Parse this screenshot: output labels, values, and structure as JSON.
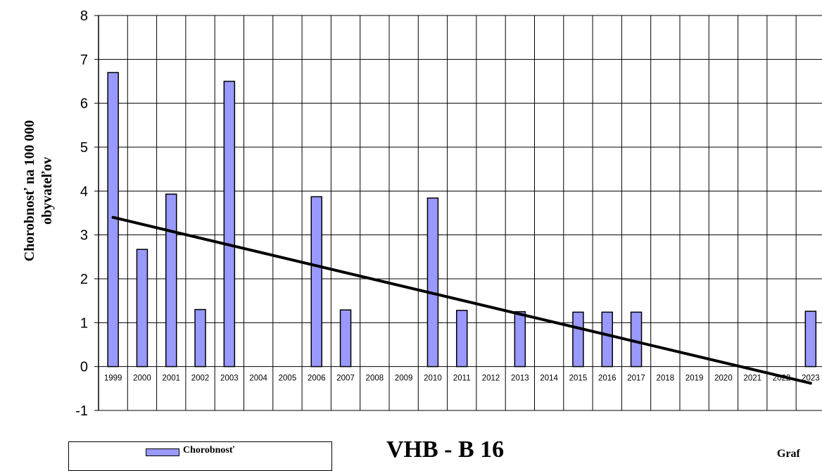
{
  "chart_data": {
    "type": "bar",
    "ylabel_line1": "Chorobnosť na 100 000",
    "ylabel_line2": "obyvateľov",
    "categories": [
      "1999",
      "2000",
      "2001",
      "2002",
      "2003",
      "2004",
      "2005",
      "2006",
      "2007",
      "2008",
      "2009",
      "2010",
      "2011",
      "2012",
      "2013",
      "2014",
      "2015",
      "2016",
      "2017",
      "2018",
      "2019",
      "2020",
      "2021",
      "2022",
      "2023"
    ],
    "series": [
      {
        "name": "Chorobnosť",
        "color": "#9999ff",
        "values": [
          6.7,
          2.67,
          3.93,
          1.3,
          6.5,
          0,
          0,
          3.87,
          1.29,
          0,
          0,
          3.84,
          1.28,
          0,
          1.25,
          0,
          1.24,
          1.24,
          1.24,
          0,
          0,
          0,
          0,
          0,
          1.26
        ]
      }
    ],
    "trendline": {
      "color": "#000000",
      "start": 3.4,
      "end": -0.38
    },
    "y_ticks": [
      "-1",
      "0",
      "1",
      "2",
      "3",
      "4",
      "5",
      "6",
      "7",
      "8"
    ],
    "ylim": [
      -1,
      8
    ],
    "grid": true,
    "legend_position": "bottom-left"
  },
  "footer": {
    "title": "VHB - B 16",
    "right_text": "Graf"
  }
}
